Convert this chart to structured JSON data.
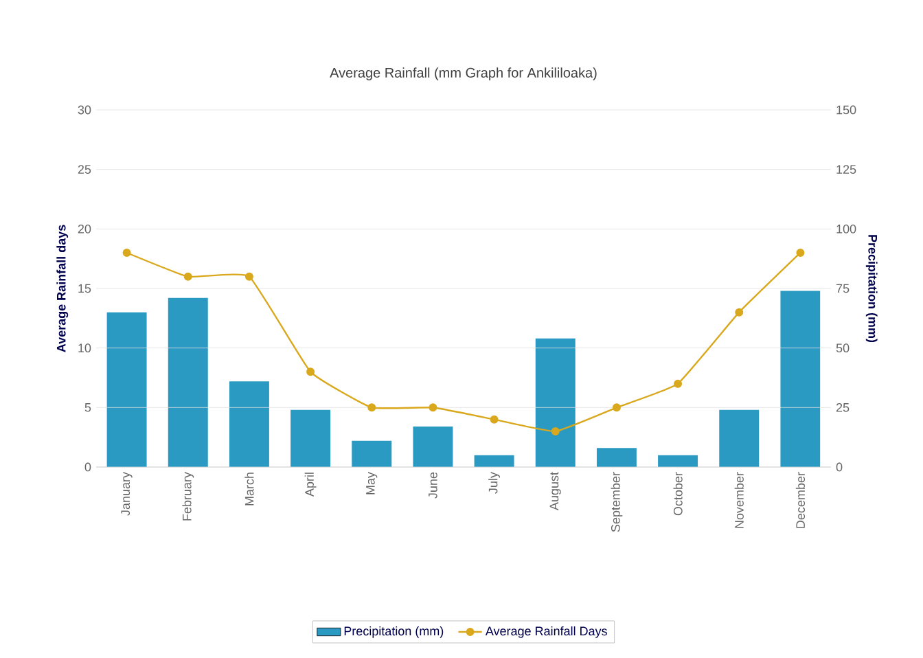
{
  "chart_data": {
    "type": "bar",
    "title": "Average Rainfall (mm Graph for Ankililoaka)",
    "categories": [
      "January",
      "February",
      "March",
      "April",
      "May",
      "June",
      "July",
      "August",
      "September",
      "October",
      "November",
      "December"
    ],
    "series": [
      {
        "name": "Precipitation (mm)",
        "axis": "y2",
        "color": "#2b9ac2",
        "values": [
          65,
          71,
          36,
          24,
          11,
          17,
          5,
          54,
          8,
          5,
          24,
          74
        ]
      },
      {
        "name": "Average Rainfall Days",
        "type": "line",
        "color": "#d9a81c",
        "values": [
          18,
          16,
          16,
          8,
          5,
          5,
          4,
          3,
          5,
          7,
          13,
          18
        ]
      }
    ],
    "ylabel": "Average Rainfall days",
    "y2label": "Precipitation (mm)",
    "ylim": [
      0,
      30
    ],
    "yticks": [
      0,
      5,
      10,
      15,
      20,
      25,
      30
    ],
    "y2lim": [
      0,
      150
    ],
    "y2ticks": [
      0,
      25,
      50,
      75,
      100,
      125,
      150
    ],
    "grid": "y",
    "legend": "bottom",
    "marker": "circle",
    "line_style": "solid"
  }
}
